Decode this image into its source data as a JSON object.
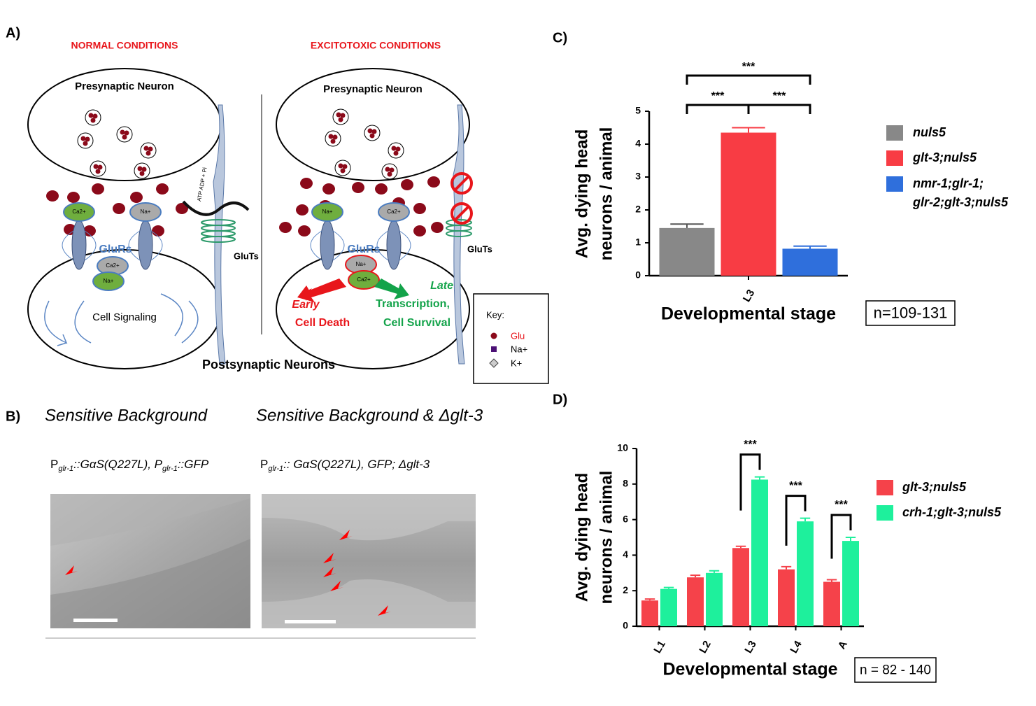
{
  "panel_a": {
    "label": "A)",
    "normal_title": "NORMAL CONDITIONS",
    "excito_title": "EXCITOTOXIC CONDITIONS",
    "presynaptic": [
      "Presynaptic Neuron",
      "Presynaptic Neuron"
    ],
    "glurs": [
      "GluRs",
      "GluRs"
    ],
    "gluts": [
      "GluTs",
      "GluTs"
    ],
    "ions": [
      "Ca2+",
      "Na+",
      "Na+",
      "Ca2+",
      "Ca2+",
      "Na+",
      "Na+",
      "Ca2+"
    ],
    "atp": "ATP  ADP + Pi",
    "cell_signaling": "Cell Signaling",
    "early": "Early",
    "cell_death": "Cell Death",
    "late": "Late",
    "transcription": "Transcription,",
    "cell_survival": "Cell Survival",
    "postsynaptic": "Postsynaptic Neurons",
    "key": {
      "title": "Key:",
      "glu": "Glu",
      "na": "Na+",
      "k": "K+"
    }
  },
  "panel_b": {
    "label": "B)",
    "left_title": "Sensitive Background",
    "right_title": "Sensitive Background & Δglt-3",
    "left_caption": [
      "P",
      "glr-1",
      "::GαS(Q227L), P",
      "glr-1",
      "::GFP"
    ],
    "right_caption": [
      "P",
      "glr-1",
      ":: GαS(Q227L), GFP; Δglt-3"
    ]
  },
  "chart_data": [
    {
      "type": "bar",
      "panel_label": "C)",
      "ylabel": [
        "Avg. dying head",
        "neurons / animal"
      ],
      "xlabel": "Developmental stage",
      "categories": [
        "L3"
      ],
      "ylim": [
        0,
        5
      ],
      "yticks": [
        0,
        1,
        2,
        3,
        4,
        5
      ],
      "annotation": "n=109-131",
      "series": [
        {
          "name": "nuls5",
          "color": "#888888",
          "values": [
            1.45
          ],
          "errors": [
            0.12
          ]
        },
        {
          "name": "glt-3;nuls5",
          "color": "#f83c44",
          "values": [
            4.35
          ],
          "errors": [
            0.15
          ]
        },
        {
          "name": "nmr-1;glr-1;glr-2;glt-3;nuls5",
          "color": "#2f6fdc",
          "values": [
            0.82
          ],
          "errors": [
            0.08
          ]
        }
      ],
      "significance": [
        "***",
        "***",
        "***"
      ]
    },
    {
      "type": "bar",
      "panel_label": "D)",
      "ylabel": [
        "Avg. dying head",
        "neurons / animal"
      ],
      "xlabel": "Developmental stage",
      "categories": [
        "L1",
        "L2",
        "L3",
        "L4",
        "A"
      ],
      "ylim": [
        0,
        10
      ],
      "yticks": [
        0,
        2,
        4,
        6,
        8,
        10
      ],
      "annotation": "n = 82 - 140",
      "series": [
        {
          "name": "glt-3;nuls5",
          "color": "#f5424a",
          "values": [
            1.45,
            2.75,
            4.4,
            3.2,
            2.5
          ],
          "errors": [
            0.08,
            0.12,
            0.1,
            0.15,
            0.12
          ]
        },
        {
          "name": "crh-1;glt-3;nuls5",
          "color": "#1ef09c",
          "values": [
            2.1,
            3.0,
            8.25,
            5.9,
            4.8
          ],
          "errors": [
            0.08,
            0.12,
            0.15,
            0.18,
            0.2
          ]
        }
      ],
      "significance": [
        null,
        null,
        "***",
        "***",
        "***"
      ]
    }
  ]
}
